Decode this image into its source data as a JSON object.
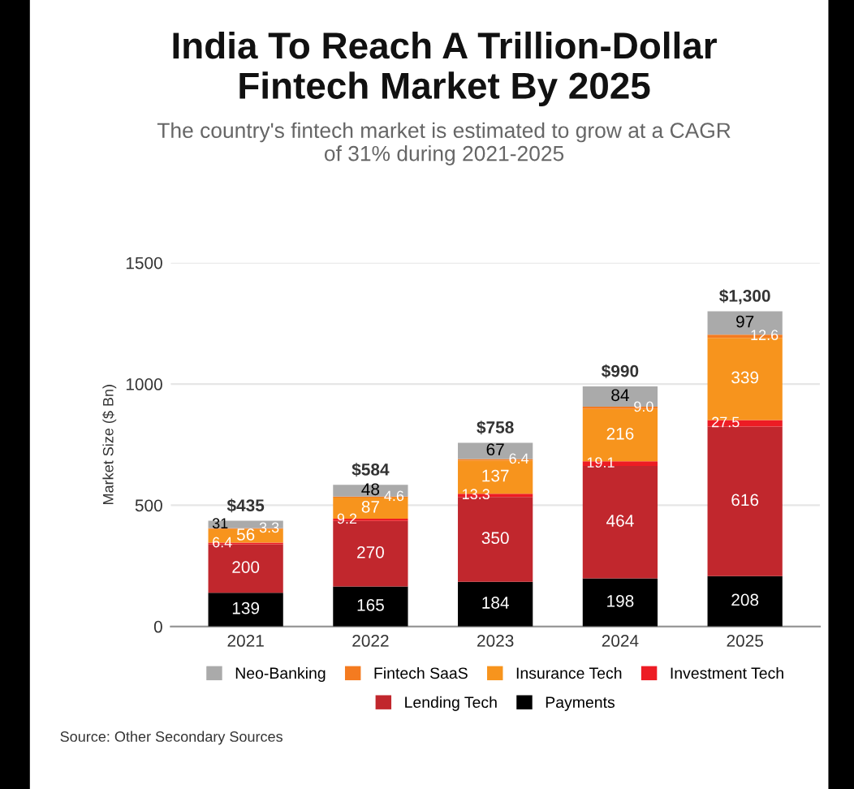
{
  "chart_data": {
    "type": "bar",
    "stacked": true,
    "title": "India To Reach A Trillion-Dollar\nFintech Market By 2025",
    "subtitle": "The country's fintech market is estimated to grow at a CAGR\nof 31% during 2021-2025",
    "ylabel": "Market Size ($ Bn)",
    "categories": [
      "2021",
      "2022",
      "2023",
      "2024",
      "2025"
    ],
    "series": [
      {
        "name": "Payments",
        "color": "#000000",
        "values": [
          139,
          165,
          184,
          198,
          208
        ]
      },
      {
        "name": "Lending Tech",
        "color": "#c1272d",
        "values": [
          200,
          270,
          350,
          464,
          616
        ]
      },
      {
        "name": "Investment Tech",
        "color": "#ed1c24",
        "values": [
          6.4,
          9.2,
          13.3,
          19.1,
          27.5
        ]
      },
      {
        "name": "Insurance Tech",
        "color": "#f7941d",
        "values": [
          56,
          87,
          137,
          216,
          339
        ]
      },
      {
        "name": "Fintech SaaS",
        "color": "#f47b20",
        "values": [
          3.3,
          4.6,
          6.4,
          9.0,
          12.6
        ],
        "value_labels": [
          "3.3",
          "4.6",
          "6.4",
          "9.0",
          "12.6"
        ]
      },
      {
        "name": "Neo-Banking",
        "color": "#aaaaaa",
        "values": [
          31,
          48,
          67,
          84,
          97
        ]
      }
    ],
    "totals": [
      "$435",
      "$584",
      "$758",
      "$990",
      "$1,300"
    ],
    "data_labels": true,
    "ylim": [
      0,
      1500
    ],
    "yticks": [
      0,
      500,
      1000,
      1500
    ],
    "grid": "y",
    "legend": "bottom",
    "annotations": [
      "Source: Other Secondary Sources"
    ]
  }
}
